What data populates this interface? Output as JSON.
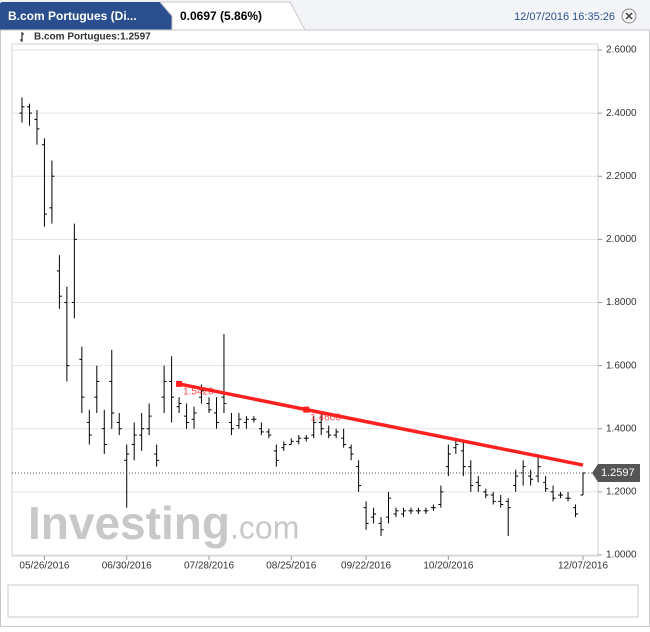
{
  "header": {
    "title": "B.com Portugues (Di...",
    "change": "0.0697 (5.86%)",
    "datetime": "12/07/2016 16:35:26"
  },
  "chart_data": {
    "type": "ohlc",
    "legend": "B.com Portugues:1.2597",
    "watermark": [
      "Investing",
      ".com"
    ],
    "color": "#000000",
    "grid": true,
    "categories": [
      null,
      null,
      null,
      "05/26/2016",
      null,
      null,
      null,
      null,
      null,
      null,
      null,
      null,
      null,
      null,
      "06/30/2016",
      null,
      null,
      null,
      null,
      null,
      null,
      null,
      null,
      null,
      null,
      "07/28/2016",
      null,
      null,
      null,
      null,
      null,
      null,
      null,
      null,
      null,
      null,
      "08/25/2016",
      null,
      null,
      null,
      null,
      null,
      null,
      null,
      null,
      null,
      "09/22/2016",
      null,
      null,
      null,
      null,
      null,
      null,
      null,
      null,
      null,
      null,
      "10/20/2016",
      null,
      null,
      null,
      null,
      null,
      null,
      null,
      null,
      null,
      null,
      null,
      null,
      null,
      null,
      null,
      null,
      null,
      "12/07/2016"
    ],
    "open": [
      2.4,
      2.42,
      2.38,
      2.3,
      2.1,
      1.9,
      1.8,
      1.8,
      1.62,
      1.42,
      1.5,
      1.4,
      1.55,
      1.42,
      1.3,
      1.35,
      1.38,
      1.4,
      1.32,
      1.5,
      1.55,
      1.47,
      1.44,
      1.43,
      1.5,
      1.48,
      1.45,
      1.5,
      1.42,
      1.41,
      1.42,
      1.43,
      1.4,
      1.39,
      1.33,
      1.34,
      1.35,
      1.36,
      1.37,
      1.38,
      1.42,
      1.39,
      1.38,
      1.37,
      1.34,
      1.28,
      1.15,
      1.12,
      1.1,
      1.12,
      1.13,
      1.13,
      1.14,
      1.14,
      1.14,
      1.15,
      1.16,
      1.28,
      1.34,
      1.33,
      1.28,
      1.23,
      1.2,
      1.19,
      1.17,
      1.17,
      1.22,
      1.26,
      1.25,
      1.25,
      1.23,
      1.2,
      1.19,
      1.18,
      1.15,
      1.19
    ],
    "high": [
      2.45,
      2.43,
      2.41,
      2.32,
      2.25,
      1.95,
      1.85,
      2.05,
      1.66,
      1.46,
      1.6,
      1.46,
      1.65,
      1.45,
      1.35,
      1.42,
      1.45,
      1.48,
      1.35,
      1.6,
      1.63,
      1.5,
      1.48,
      1.47,
      1.54,
      1.5,
      1.5,
      1.7,
      1.45,
      1.45,
      1.44,
      1.44,
      1.42,
      1.4,
      1.35,
      1.36,
      1.37,
      1.38,
      1.38,
      1.44,
      1.45,
      1.41,
      1.4,
      1.4,
      1.35,
      1.3,
      1.17,
      1.15,
      1.12,
      1.2,
      1.15,
      1.15,
      1.15,
      1.15,
      1.15,
      1.16,
      1.22,
      1.35,
      1.37,
      1.36,
      1.3,
      1.25,
      1.21,
      1.2,
      1.19,
      1.18,
      1.27,
      1.3,
      1.27,
      1.32,
      1.25,
      1.22,
      1.2,
      1.2,
      1.16,
      1.26
    ],
    "low": [
      2.37,
      2.36,
      2.3,
      2.04,
      2.05,
      1.78,
      1.55,
      1.75,
      1.45,
      1.35,
      1.45,
      1.32,
      1.4,
      1.38,
      1.15,
      1.3,
      1.33,
      1.38,
      1.28,
      1.45,
      1.42,
      1.45,
      1.4,
      1.4,
      1.48,
      1.45,
      1.4,
      1.45,
      1.38,
      1.4,
      1.4,
      1.42,
      1.38,
      1.37,
      1.28,
      1.33,
      1.35,
      1.35,
      1.36,
      1.37,
      1.38,
      1.37,
      1.37,
      1.34,
      1.3,
      1.2,
      1.08,
      1.1,
      1.06,
      1.1,
      1.12,
      1.12,
      1.13,
      1.13,
      1.13,
      1.14,
      1.15,
      1.25,
      1.32,
      1.25,
      1.2,
      1.2,
      1.18,
      1.16,
      1.15,
      1.06,
      1.2,
      1.22,
      1.22,
      1.23,
      1.2,
      1.17,
      1.18,
      1.17,
      1.12,
      1.19
    ],
    "close": [
      2.42,
      2.4,
      2.35,
      2.08,
      2.2,
      1.82,
      1.6,
      2.0,
      1.5,
      1.38,
      1.55,
      1.35,
      1.45,
      1.4,
      1.32,
      1.38,
      1.4,
      1.44,
      1.3,
      1.55,
      1.5,
      1.48,
      1.42,
      1.45,
      1.52,
      1.46,
      1.42,
      1.48,
      1.4,
      1.43,
      1.43,
      1.43,
      1.39,
      1.38,
      1.3,
      1.35,
      1.36,
      1.37,
      1.37,
      1.42,
      1.4,
      1.38,
      1.39,
      1.35,
      1.32,
      1.22,
      1.1,
      1.13,
      1.08,
      1.18,
      1.14,
      1.14,
      1.14,
      1.14,
      1.14,
      1.15,
      1.2,
      1.32,
      1.35,
      1.28,
      1.22,
      1.22,
      1.19,
      1.17,
      1.16,
      1.15,
      1.25,
      1.28,
      1.24,
      1.28,
      1.21,
      1.18,
      1.19,
      1.18,
      1.13,
      1.2597
    ],
    "trendline": {
      "color": "#ff2020",
      "values": [
        null,
        null,
        null,
        null,
        null,
        null,
        null,
        null,
        null,
        null,
        null,
        null,
        null,
        null,
        null,
        null,
        null,
        null,
        null,
        null,
        null,
        1.542,
        null,
        null,
        null,
        null,
        null,
        null,
        null,
        null,
        null,
        null,
        null,
        null,
        null,
        null,
        null,
        null,
        1.4606,
        null,
        null,
        null,
        null,
        null,
        null,
        null,
        null,
        null,
        null,
        null,
        null,
        null,
        null,
        null,
        null,
        null,
        null,
        null,
        null,
        null,
        null,
        null,
        null,
        null,
        null,
        null,
        null,
        null,
        null,
        null,
        null,
        null,
        null,
        null,
        null,
        1.285
      ],
      "value_labels": [
        null,
        null,
        null,
        null,
        null,
        null,
        null,
        null,
        null,
        null,
        null,
        null,
        null,
        null,
        null,
        null,
        null,
        null,
        null,
        null,
        null,
        "1.5420",
        null,
        null,
        null,
        null,
        null,
        null,
        null,
        null,
        null,
        null,
        null,
        null,
        null,
        null,
        null,
        null,
        "1.4606",
        null,
        null,
        null,
        null,
        null,
        null,
        null,
        null,
        null,
        null,
        null,
        null,
        null,
        null,
        null,
        null,
        null,
        null,
        null,
        null,
        null,
        null,
        null,
        null,
        null,
        null,
        null,
        null,
        null,
        null,
        null,
        null,
        null,
        null,
        null,
        null,
        null
      ]
    },
    "last_price": {
      "value": 1.2597,
      "label": "1.2597"
    },
    "ylim": [
      1.0,
      2.6
    ],
    "yticks": [
      {
        "value": 1.0,
        "label": "1.0000"
      },
      {
        "value": 1.2,
        "label": "1.2000"
      },
      {
        "value": 1.4,
        "label": "1.4000"
      },
      {
        "value": 1.6,
        "label": "1.6000"
      },
      {
        "value": 1.8,
        "label": "1.8000"
      },
      {
        "value": 2.0,
        "label": "2.0000"
      },
      {
        "value": 2.2,
        "label": "2.2000"
      },
      {
        "value": 2.4,
        "label": "2.4000"
      },
      {
        "value": 2.6,
        "label": "2.6000"
      }
    ]
  }
}
